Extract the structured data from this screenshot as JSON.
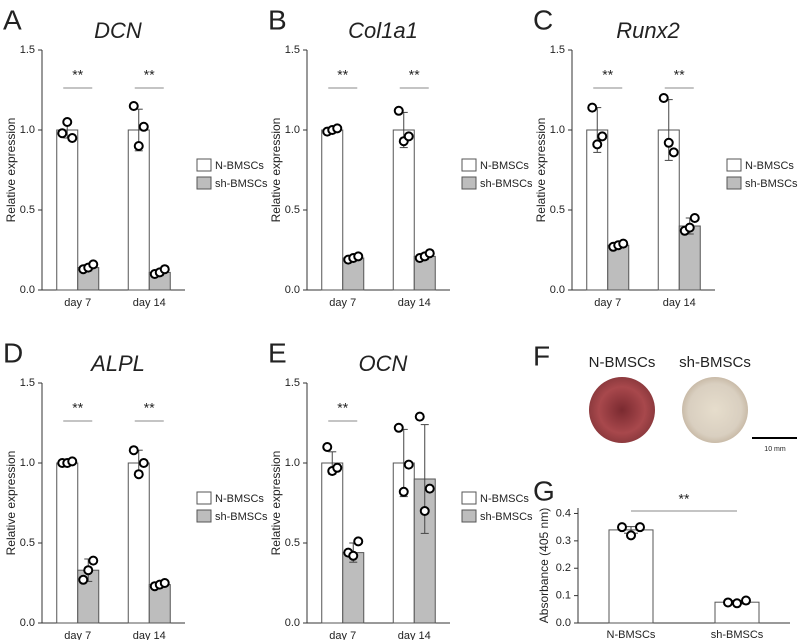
{
  "chart_data": [
    {
      "type": "grouped_bar",
      "label": "A",
      "title": "DCN",
      "ylabel": "Relative expression",
      "categories": [
        "day 7",
        "day 14"
      ],
      "series": [
        {
          "name": "N-BMSCs",
          "color": "#ffffff",
          "values": [
            1.0,
            1.0
          ],
          "errors": [
            0.05,
            0.13
          ],
          "points": [
            [
              0.98,
              1.05,
              0.95
            ],
            [
              1.15,
              0.9,
              1.02
            ]
          ]
        },
        {
          "name": "sh-BMSCs",
          "color": "#bdbdbd",
          "values": [
            0.14,
            0.11
          ],
          "errors": [
            0.02,
            0.02
          ],
          "points": [
            [
              0.13,
              0.14,
              0.16
            ],
            [
              0.1,
              0.11,
              0.13
            ]
          ]
        }
      ],
      "significance": [
        "**",
        "**"
      ],
      "ylim": [
        0,
        1.5
      ],
      "yticks": [
        {
          "value": 0,
          "label": "0.0"
        },
        0.5,
        {
          "value": 1,
          "label": "1.0"
        },
        1.5
      ]
    },
    {
      "type": "grouped_bar",
      "label": "B",
      "title": "Col1a1",
      "ylabel": "Relative expression",
      "categories": [
        "day 7",
        "day 14"
      ],
      "series": [
        {
          "name": "N-BMSCs",
          "color": "#ffffff",
          "values": [
            1.0,
            1.0
          ],
          "errors": [
            0.01,
            0.11
          ],
          "points": [
            [
              0.99,
              1.0,
              1.01
            ],
            [
              1.12,
              0.93,
              0.96
            ]
          ]
        },
        {
          "name": "sh-BMSCs",
          "color": "#bdbdbd",
          "values": [
            0.2,
            0.21
          ],
          "errors": [
            0.01,
            0.02
          ],
          "points": [
            [
              0.19,
              0.2,
              0.21
            ],
            [
              0.2,
              0.21,
              0.23
            ]
          ]
        }
      ],
      "significance": [
        "**",
        "**"
      ],
      "ylim": [
        0,
        1.5
      ],
      "yticks": [
        {
          "value": 0,
          "label": "0.0"
        },
        0.5,
        {
          "value": 1,
          "label": "1.0"
        },
        1.5
      ]
    },
    {
      "type": "grouped_bar",
      "label": "C",
      "title": "Runx2",
      "ylabel": "Relative expression",
      "categories": [
        "day 7",
        "day 14"
      ],
      "series": [
        {
          "name": "N-BMSCs",
          "color": "#ffffff",
          "values": [
            1.0,
            1.0
          ],
          "errors": [
            0.14,
            0.19
          ],
          "points": [
            [
              1.14,
              0.91,
              0.96
            ],
            [
              1.2,
              0.92,
              0.86
            ]
          ]
        },
        {
          "name": "sh-BMSCs",
          "color": "#bdbdbd",
          "values": [
            0.28,
            0.4
          ],
          "errors": [
            0.01,
            0.05
          ],
          "points": [
            [
              0.27,
              0.28,
              0.29
            ],
            [
              0.37,
              0.39,
              0.45
            ]
          ]
        }
      ],
      "significance": [
        "**",
        "**"
      ],
      "ylim": [
        0,
        1.5
      ],
      "yticks": [
        {
          "value": 0,
          "label": "0.0"
        },
        0.5,
        {
          "value": 1,
          "label": "1.0"
        },
        1.5
      ]
    },
    {
      "type": "grouped_bar",
      "label": "D",
      "title": "ALPL",
      "ylabel": "Relative expression",
      "categories": [
        "day 7",
        "day 14"
      ],
      "series": [
        {
          "name": "N-BMSCs",
          "color": "#ffffff",
          "values": [
            1.0,
            1.0
          ],
          "errors": [
            0.01,
            0.08
          ],
          "points": [
            [
              1.0,
              1.0,
              1.01
            ],
            [
              1.08,
              0.93,
              1.0
            ]
          ]
        },
        {
          "name": "sh-BMSCs",
          "color": "#bdbdbd",
          "values": [
            0.33,
            0.24
          ],
          "errors": [
            0.07,
            0.01
          ],
          "points": [
            [
              0.27,
              0.33,
              0.39
            ],
            [
              0.23,
              0.24,
              0.25
            ]
          ]
        }
      ],
      "significance": [
        "**",
        "**"
      ],
      "ylim": [
        0,
        1.5
      ],
      "yticks": [
        {
          "value": 0,
          "label": "0.0"
        },
        0.5,
        {
          "value": 1,
          "label": "1.0"
        },
        1.5
      ]
    },
    {
      "type": "grouped_bar",
      "label": "E",
      "title": "OCN",
      "ylabel": "Relative expression",
      "categories": [
        "day 7",
        "day 14"
      ],
      "series": [
        {
          "name": "N-BMSCs",
          "color": "#ffffff",
          "values": [
            1.0,
            1.0
          ],
          "errors": [
            0.07,
            0.21
          ],
          "points": [
            [
              1.1,
              0.95,
              0.97
            ],
            [
              1.22,
              0.82,
              0.99
            ]
          ]
        },
        {
          "name": "sh-BMSCs",
          "color": "#bdbdbd",
          "values": [
            0.44,
            0.9
          ],
          "errors": [
            0.06,
            0.34
          ],
          "points": [
            [
              0.44,
              0.42,
              0.51
            ],
            [
              1.29,
              0.7,
              0.84
            ]
          ]
        }
      ],
      "significance": [
        "**",
        null
      ],
      "ylim": [
        0,
        1.5
      ],
      "yticks": [
        {
          "value": 0,
          "label": "0.0"
        },
        0.5,
        {
          "value": 1,
          "label": "1.0"
        },
        1.5
      ]
    },
    {
      "type": "bar",
      "label": "G",
      "ylabel": "Absorbance (405 nm)",
      "categories": [
        "N-BMSCs",
        "sh-BMSCs"
      ],
      "color": "#ffffff",
      "values": [
        0.34,
        0.076
      ],
      "errors": [
        0.012,
        0.006
      ],
      "points": [
        [
          0.35,
          0.32,
          0.35
        ],
        [
          0.075,
          0.072,
          0.082
        ]
      ],
      "significance": "**",
      "ylim": [
        0,
        0.42
      ],
      "yticks": [
        {
          "value": 0,
          "label": "0.0"
        },
        0.1,
        0.2,
        0.3,
        0.4
      ]
    }
  ],
  "panel_f": {
    "label": "F",
    "captions": [
      "N-BMSCs",
      "sh-BMSCs"
    ],
    "scale_bar": "10 mm"
  }
}
